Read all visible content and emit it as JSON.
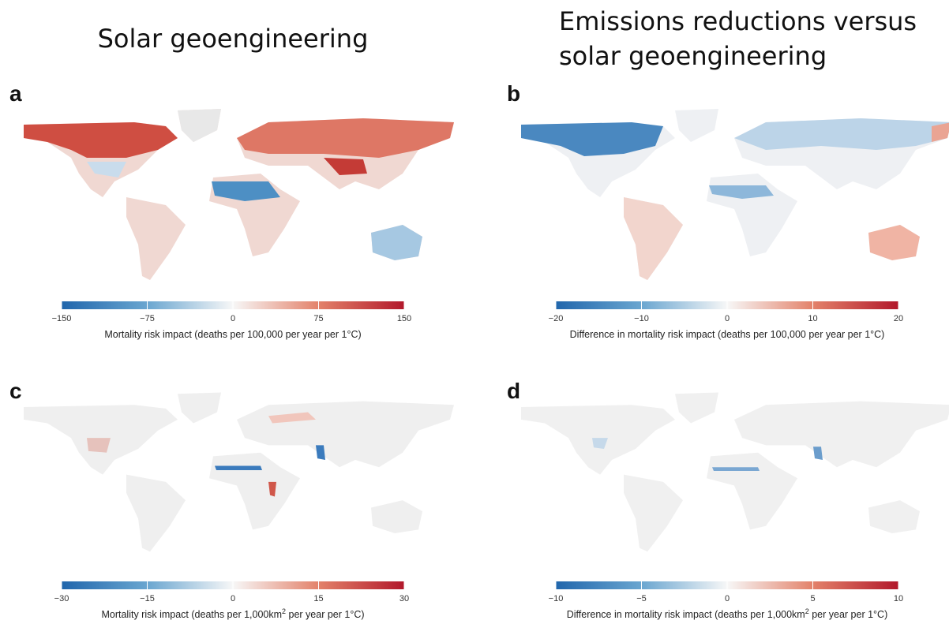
{
  "column_titles": [
    {
      "lines": [
        "Solar geoengineering"
      ]
    },
    {
      "lines": [
        "Emissions reductions versus",
        "solar geoengineering"
      ]
    }
  ],
  "panels": [
    {
      "letter": "a",
      "colorbar": {
        "lim": [
          -150,
          150
        ],
        "ticks": [
          {
            "value": -150,
            "label": "−150"
          },
          {
            "value": -75,
            "label": "−75"
          },
          0,
          75,
          150
        ],
        "label_parts": [
          "Mortality risk impact (deaths per 100,000 per year per 1°C)"
        ]
      }
    },
    {
      "letter": "b",
      "colorbar": {
        "lim": [
          -20,
          20
        ],
        "ticks": [
          {
            "value": -20,
            "label": "−20"
          },
          {
            "value": -10,
            "label": "−10"
          },
          0,
          10,
          20
        ],
        "label_parts": [
          "Difference in mortality risk impact (deaths per 100,000 per year per 1°C)"
        ]
      }
    },
    {
      "letter": "c",
      "colorbar": {
        "lim": [
          -30,
          30
        ],
        "ticks": [
          {
            "value": -30,
            "label": "−30"
          },
          {
            "value": -15,
            "label": "−15"
          },
          0,
          15,
          30
        ],
        "label_parts": [
          "Mortality risk impact (deaths per 1,000km",
          "2",
          " per year per 1°C)"
        ]
      }
    },
    {
      "letter": "d",
      "colorbar": {
        "lim": [
          -10,
          10
        ],
        "ticks": [
          {
            "value": -10,
            "label": "−10"
          },
          {
            "value": -5,
            "label": "−5"
          },
          0,
          5,
          10
        ],
        "label_parts": [
          "Difference in mortality risk impact (deaths per 1,000km",
          "2",
          " per year per 1°C)"
        ]
      }
    }
  ]
}
